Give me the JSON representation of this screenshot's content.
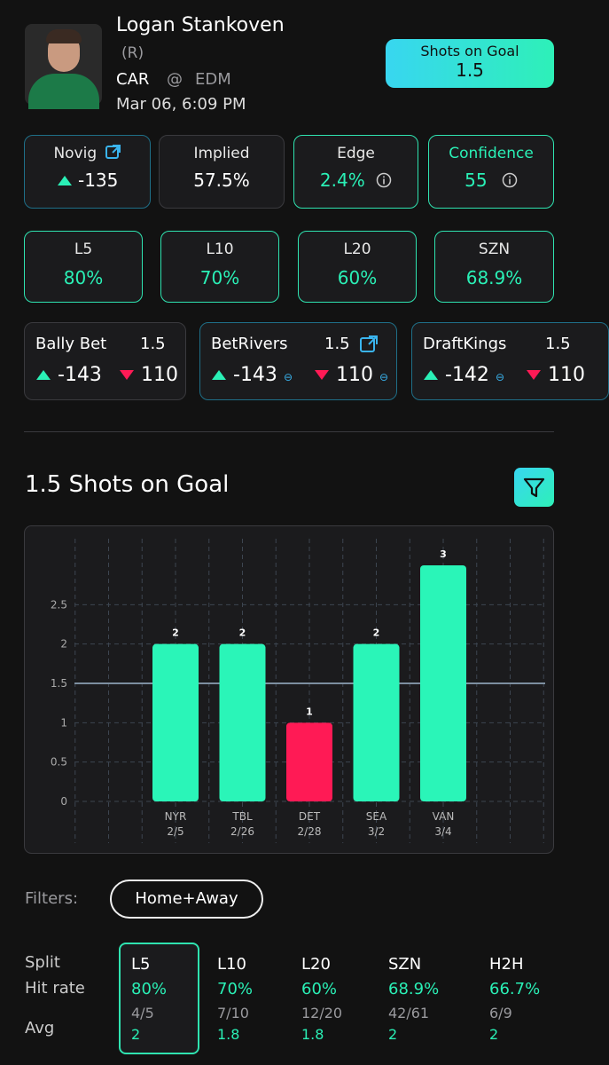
{
  "player": {
    "name": "Logan Stankoven",
    "position": "(R)",
    "team": "CAR",
    "at": "@",
    "opponent": "EDM",
    "date": "Mar 06, 6:09 PM"
  },
  "prop": {
    "market": "Shots on Goal",
    "line": "1.5"
  },
  "stats": [
    {
      "label": "Novig",
      "value": "-135"
    },
    {
      "label": "Implied",
      "value": "57.5%"
    },
    {
      "label": "Edge",
      "value": "2.4%"
    },
    {
      "label": "Confidence",
      "value": "55"
    }
  ],
  "hit_cards": [
    {
      "label": "L5",
      "value": "80%"
    },
    {
      "label": "L10",
      "value": "70%"
    },
    {
      "label": "L20",
      "value": "60%"
    },
    {
      "label": "SZN",
      "value": "68.9%"
    }
  ],
  "books": [
    {
      "name": "Bally Bet",
      "line": "1.5",
      "over": "-143",
      "under": "110"
    },
    {
      "name": "BetRivers",
      "line": "1.5",
      "over": "-143",
      "under": "110"
    },
    {
      "name": "DraftKings",
      "line": "1.5",
      "over": "-142",
      "under": "110"
    }
  ],
  "chart_data": {
    "type": "bar",
    "title": "1.5 Shots on Goal",
    "categories": [
      "NYR",
      "TBL",
      "DET",
      "SEA",
      "VAN"
    ],
    "dates": [
      "2/5",
      "2/26",
      "2/28",
      "3/2",
      "3/4"
    ],
    "values": [
      2,
      2,
      1,
      2,
      3
    ],
    "line": 1.5,
    "over_color": "#2af5b8",
    "under_color": "#ff1a55",
    "ylim": [
      0,
      3
    ],
    "yticks": [
      0,
      0.5,
      1,
      1.5,
      2,
      2.5
    ],
    "grid": true
  },
  "filters": {
    "label": "Filters:",
    "value": "Home+Away"
  },
  "splits": {
    "row_labels": [
      "Split",
      "Hit rate",
      "Avg"
    ],
    "columns": [
      {
        "split": "L5",
        "hit_rate": "80%",
        "fraction": "4/5",
        "avg": "2"
      },
      {
        "split": "L10",
        "hit_rate": "70%",
        "fraction": "7/10",
        "avg": "1.8"
      },
      {
        "split": "L20",
        "hit_rate": "60%",
        "fraction": "12/20",
        "avg": "1.8"
      },
      {
        "split": "SZN",
        "hit_rate": "68.9%",
        "fraction": "42/61",
        "avg": "2"
      },
      {
        "split": "H2H",
        "hit_rate": "66.7%",
        "fraction": "6/9",
        "avg": "2"
      }
    ],
    "selected": "L5"
  }
}
